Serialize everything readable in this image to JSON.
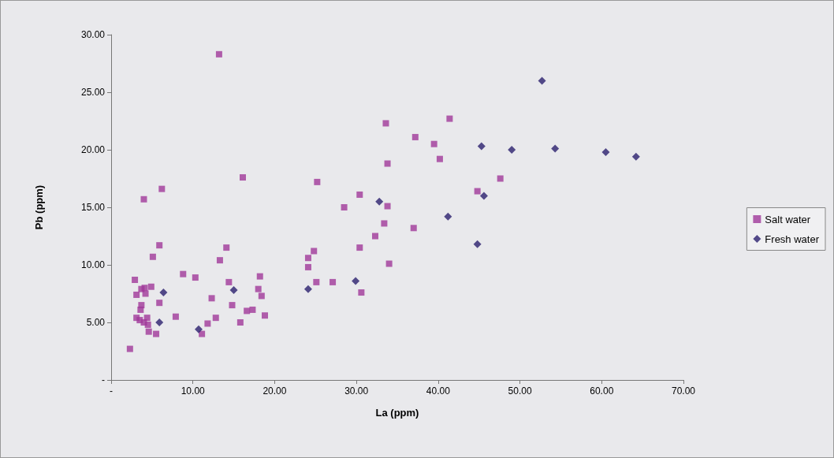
{
  "chart_data": {
    "type": "scatter",
    "xlabel": "La (ppm)",
    "ylabel": "Pb (ppm)",
    "xlim": [
      0,
      70
    ],
    "ylim": [
      0,
      30
    ],
    "xticks": [
      {
        "value": 0,
        "label": "-"
      },
      {
        "value": 10,
        "label": "10.00"
      },
      {
        "value": 20,
        "label": "20.00"
      },
      {
        "value": 30,
        "label": "30.00"
      },
      {
        "value": 40,
        "label": "40.00"
      },
      {
        "value": 50,
        "label": "50.00"
      },
      {
        "value": 60,
        "label": "60.00"
      },
      {
        "value": 70,
        "label": "70.00"
      }
    ],
    "yticks": [
      {
        "value": 0,
        "label": "-"
      },
      {
        "value": 5,
        "label": "5.00"
      },
      {
        "value": 10,
        "label": "10.00"
      },
      {
        "value": 15,
        "label": "15.00"
      },
      {
        "value": 20,
        "label": "20.00"
      },
      {
        "value": 25,
        "label": "25.00"
      },
      {
        "value": 30,
        "label": "30.00"
      }
    ],
    "grid": false,
    "legend": "right",
    "series": [
      {
        "name": "Salt water",
        "color": "#a0389a",
        "marker": "square",
        "x": [
          6.2,
          4.0,
          5.9,
          5.1,
          14.1,
          13.3,
          8.8,
          10.3,
          2.9,
          18.2,
          14.4,
          3.7,
          4.1,
          4.9,
          4.2,
          3.1,
          5.9,
          3.7,
          3.6,
          12.3,
          18.0,
          18.4,
          14.8,
          17.3,
          16.6,
          18.8,
          7.9,
          12.8,
          11.8,
          15.8,
          3.1,
          3.5,
          4.4,
          4.5,
          4.0,
          4.6,
          5.5,
          11.1,
          2.3,
          13.2,
          16.1,
          33.6,
          41.4,
          37.2,
          39.5,
          40.2,
          33.8,
          25.2,
          47.6,
          44.8,
          30.4,
          28.5,
          33.8,
          33.4,
          37.0,
          32.3,
          30.4,
          24.8,
          24.1,
          24.1,
          34.0,
          25.1,
          27.1,
          30.6
        ],
        "values": [
          16.6,
          15.7,
          11.7,
          10.7,
          11.5,
          10.4,
          9.2,
          8.9,
          8.7,
          9.0,
          8.5,
          7.9,
          8.0,
          8.1,
          7.5,
          7.4,
          6.7,
          6.5,
          6.1,
          7.1,
          7.9,
          7.3,
          6.5,
          6.1,
          6.0,
          5.6,
          5.5,
          5.4,
          4.9,
          5.0,
          5.4,
          5.2,
          5.4,
          4.8,
          5.0,
          4.2,
          4.0,
          4.0,
          2.7,
          28.3,
          17.6,
          22.3,
          22.7,
          21.1,
          20.5,
          19.2,
          18.8,
          17.2,
          17.5,
          16.4,
          16.1,
          15.0,
          15.1,
          13.6,
          13.2,
          12.5,
          11.5,
          11.2,
          10.6,
          9.8,
          10.1,
          8.5,
          8.5,
          7.6
        ]
      },
      {
        "name": "Fresh water",
        "color": "#2a1f6e",
        "marker": "diamond",
        "x": [
          6.4,
          5.9,
          10.7,
          15.0,
          45.3,
          49.0,
          45.6,
          32.8,
          41.2,
          44.8,
          29.9,
          24.1,
          54.3,
          60.5,
          64.2,
          52.7
        ],
        "values": [
          7.6,
          5.0,
          4.4,
          7.8,
          20.3,
          20.0,
          16.0,
          15.5,
          14.2,
          11.8,
          8.6,
          7.9,
          20.1,
          19.8,
          19.4,
          26.0
        ]
      }
    ]
  }
}
